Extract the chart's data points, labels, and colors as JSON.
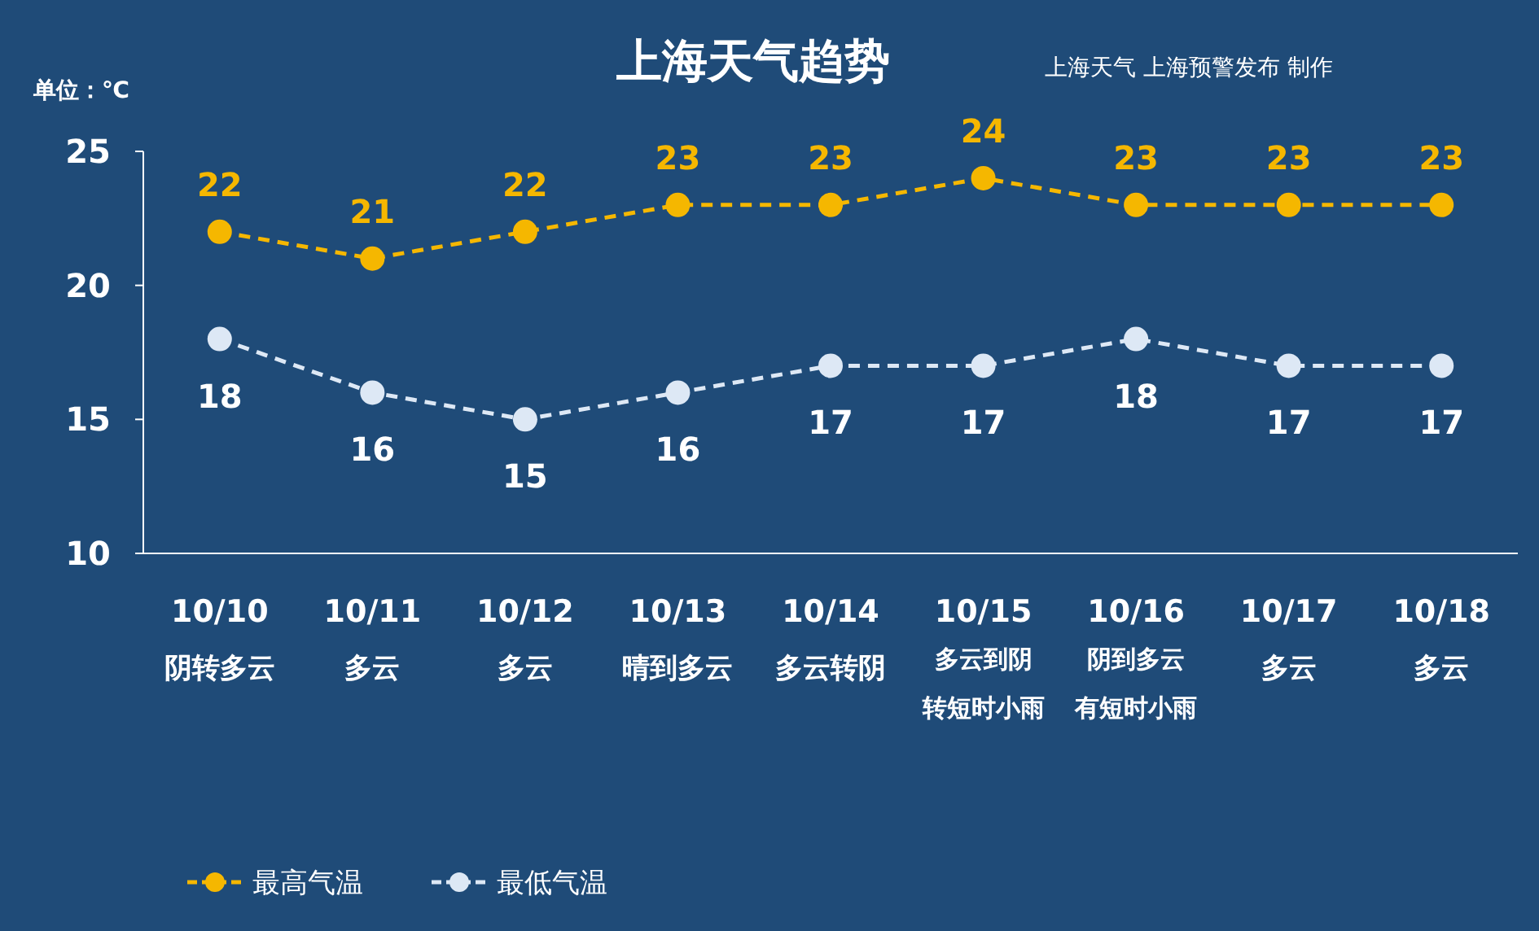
{
  "chart_data": {
    "type": "line",
    "title": "上海天气趋势",
    "ylabel": "单位：℃",
    "annotations": [
      "上海天气  上海预警发布 制作"
    ],
    "categories": [
      "10/10\n阴转多云",
      "10/11\n多云",
      "10/12\n多云",
      "10/13\n晴到多云",
      "10/14\n多云转阴",
      "10/15\n多云到阴转短时小雨",
      "10/16\n阴到多云有短时小雨",
      "10/17\n多云",
      "10/18\n多云"
    ],
    "series": [
      {
        "name": "最高气温",
        "color": "#f5b700",
        "values": [
          22,
          21,
          22,
          23,
          23,
          24,
          23,
          23,
          23
        ]
      },
      {
        "name": "最低气温",
        "color": "#dde8f5",
        "values": [
          18,
          16,
          15,
          16,
          17,
          17,
          18,
          17,
          17
        ]
      }
    ],
    "ylim": [
      10,
      25
    ],
    "yticks": [
      10,
      15,
      20,
      25
    ],
    "grid": false,
    "legend": "bottom left",
    "marker": "circle",
    "line_style": "dashed",
    "data_labels": true
  }
}
